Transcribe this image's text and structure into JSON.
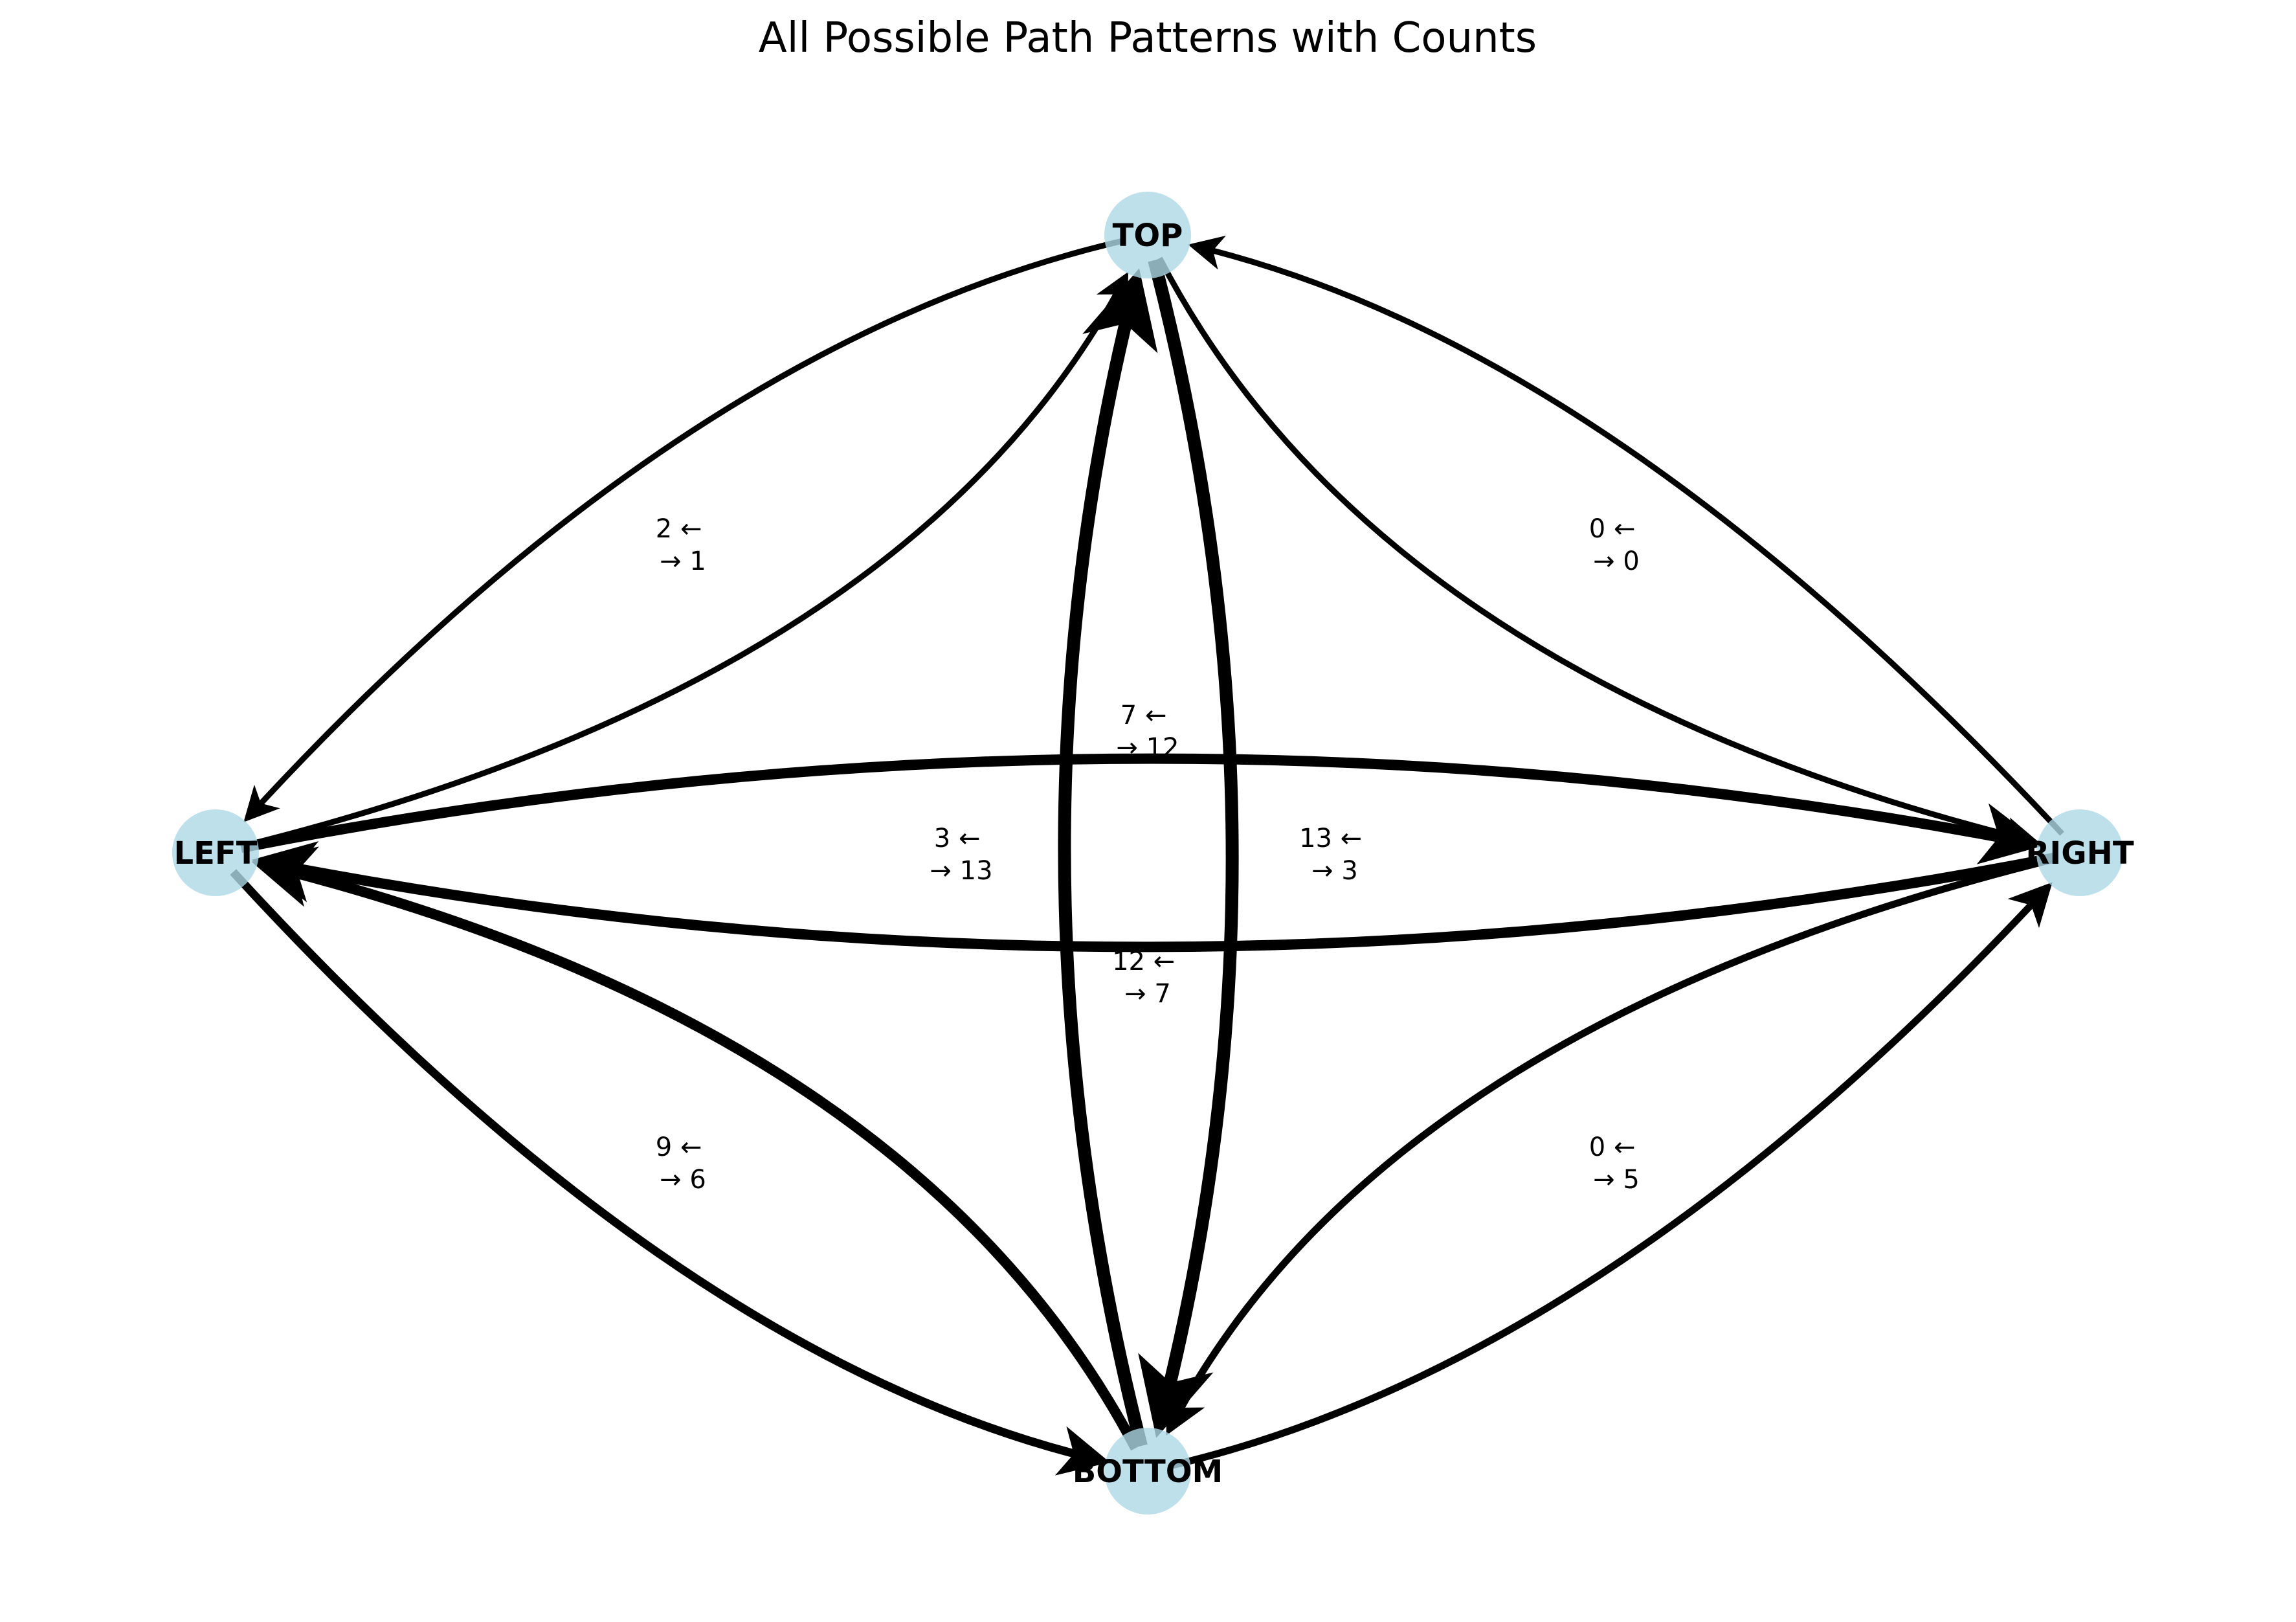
{
  "title": "All Possible Path Patterns with Counts",
  "colors": {
    "node_fill": "#add8e6",
    "edge": "#000000",
    "text": "#000000",
    "background": "#ffffff"
  },
  "nodes": [
    {
      "id": "TOP",
      "label": "TOP"
    },
    {
      "id": "LEFT",
      "label": "LEFT"
    },
    {
      "id": "RIGHT",
      "label": "RIGHT"
    },
    {
      "id": "BOTTOM",
      "label": "BOTTOM"
    }
  ],
  "edges": [
    {
      "from": "TOP",
      "to": "LEFT",
      "count": 2
    },
    {
      "from": "LEFT",
      "to": "TOP",
      "count": 1
    },
    {
      "from": "RIGHT",
      "to": "TOP",
      "count": 0
    },
    {
      "from": "TOP",
      "to": "RIGHT",
      "count": 0
    },
    {
      "from": "RIGHT",
      "to": "LEFT",
      "count": 7
    },
    {
      "from": "LEFT",
      "to": "RIGHT",
      "count": 12
    },
    {
      "from": "LEFT",
      "to": "RIGHT",
      "count": 12,
      "label_group": "left-right-lower"
    },
    {
      "from": "BOTTOM",
      "to": "TOP",
      "count": 13
    },
    {
      "from": "TOP",
      "to": "BOTTOM",
      "count": 3
    },
    {
      "from": "BOTTOM",
      "to": "LEFT",
      "count": 9
    },
    {
      "from": "LEFT",
      "to": "BOTTOM",
      "count": 6
    },
    {
      "from": "RIGHT",
      "to": "BOTTOM",
      "count": 0
    },
    {
      "from": "BOTTOM",
      "to": "RIGHT",
      "count": 5
    }
  ],
  "edge_labels": [
    {
      "id": "top-left",
      "line1": "2 ←",
      "line2": "→ 1"
    },
    {
      "id": "top-right",
      "line1": "0 ←",
      "line2": "→ 0"
    },
    {
      "id": "left-right-upper",
      "line1": "7 ←",
      "line2": "→ 12"
    },
    {
      "id": "top-bottom-left",
      "line1": "3 ←",
      "line2": "→ 13"
    },
    {
      "id": "top-bottom-right",
      "line1": "13 ←",
      "line2": "→ 3"
    },
    {
      "id": "left-right-lower",
      "line1": "12 ←",
      "line2": "→ 7"
    },
    {
      "id": "left-bottom",
      "line1": "9 ←",
      "line2": "→ 6"
    },
    {
      "id": "right-bottom",
      "line1": "0 ←",
      "line2": "→ 5"
    }
  ]
}
